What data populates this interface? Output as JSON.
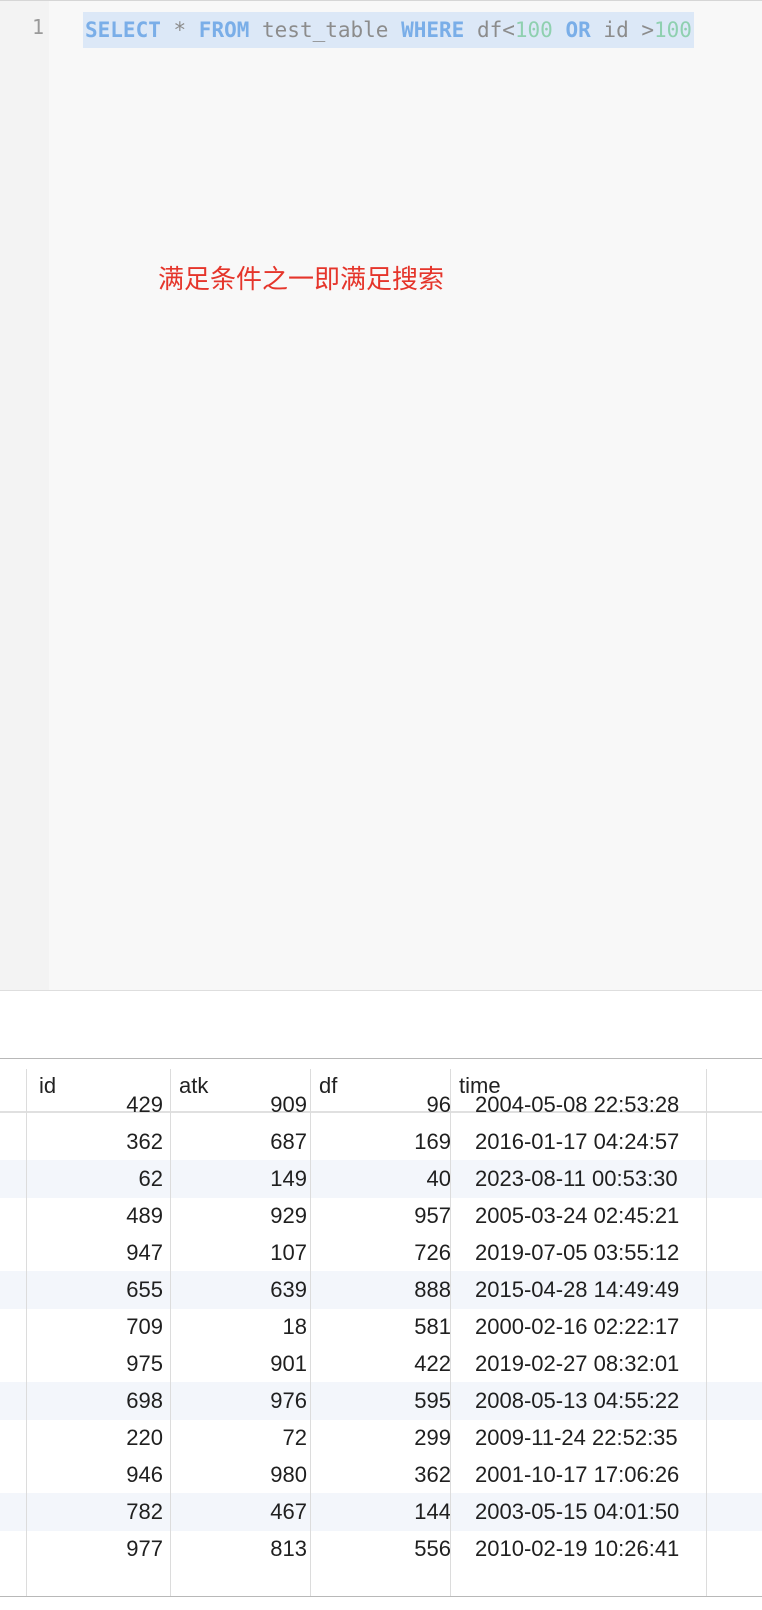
{
  "editor": {
    "line_number": "1",
    "query_tokens": [
      {
        "text": "SELECT",
        "kind": "kw"
      },
      {
        "text": " * ",
        "kind": "plain"
      },
      {
        "text": "FROM",
        "kind": "kw"
      },
      {
        "text": " test_table ",
        "kind": "plain"
      },
      {
        "text": "WHERE",
        "kind": "kw"
      },
      {
        "text": " df<",
        "kind": "plain"
      },
      {
        "text": "100",
        "kind": "num"
      },
      {
        "text": " ",
        "kind": "plain"
      },
      {
        "text": "OR",
        "kind": "kw"
      },
      {
        "text": " id >",
        "kind": "plain"
      },
      {
        "text": "100",
        "kind": "num"
      }
    ],
    "annotation": "满足条件之一即满足搜索",
    "colors": {
      "keyword": "#7aaee8",
      "number": "#8fd0b0",
      "plain": "#8c8c8c",
      "annotation": "#e5352b",
      "selection": "#dce8f7"
    }
  },
  "results": {
    "columns": [
      "id",
      "atk",
      "df",
      "time"
    ],
    "rows": [
      {
        "id": "429",
        "atk": "909",
        "df": "96",
        "time": "2004-05-08 22:53:28"
      },
      {
        "id": "362",
        "atk": "687",
        "df": "169",
        "time": "2016-01-17 04:24:57"
      },
      {
        "id": "62",
        "atk": "149",
        "df": "40",
        "time": "2023-08-11 00:53:30"
      },
      {
        "id": "489",
        "atk": "929",
        "df": "957",
        "time": "2005-03-24 02:45:21"
      },
      {
        "id": "947",
        "atk": "107",
        "df": "726",
        "time": "2019-07-05 03:55:12"
      },
      {
        "id": "655",
        "atk": "639",
        "df": "888",
        "time": "2015-04-28 14:49:49"
      },
      {
        "id": "709",
        "atk": "18",
        "df": "581",
        "time": "2000-02-16 02:22:17"
      },
      {
        "id": "975",
        "atk": "901",
        "df": "422",
        "time": "2019-02-27 08:32:01"
      },
      {
        "id": "698",
        "atk": "976",
        "df": "595",
        "time": "2008-05-13 04:55:22"
      },
      {
        "id": "220",
        "atk": "72",
        "df": "299",
        "time": "2009-11-24 22:52:35"
      },
      {
        "id": "946",
        "atk": "980",
        "df": "362",
        "time": "2001-10-17 17:06:26"
      },
      {
        "id": "782",
        "atk": "467",
        "df": "144",
        "time": "2003-05-15 04:01:50"
      },
      {
        "id": "977",
        "atk": "813",
        "df": "556",
        "time": "2010-02-19 10:26:41"
      }
    ]
  }
}
